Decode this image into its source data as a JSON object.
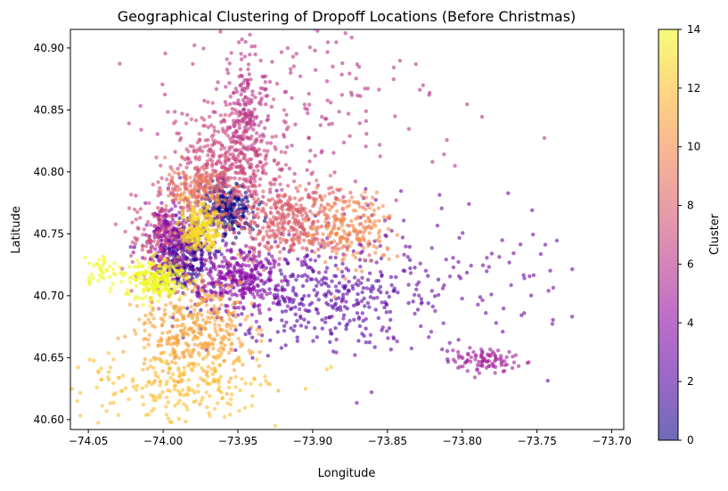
{
  "chart_data": {
    "type": "scatter",
    "title": "Geographical Clustering of Dropoff Locations (Before Christmas)",
    "xlabel": "Longitude",
    "ylabel": "Latitude",
    "xlim": [
      -74.062,
      -73.692
    ],
    "ylim": [
      40.592,
      40.915
    ],
    "xticks": [
      -74.05,
      -74.0,
      -73.95,
      -73.9,
      -73.85,
      -73.8,
      -73.75,
      -73.7
    ],
    "xtick_labels": [
      "−74.05",
      "−74.00",
      "−73.95",
      "−73.90",
      "−73.85",
      "−73.80",
      "−73.75",
      "−73.70"
    ],
    "yticks": [
      40.6,
      40.65,
      40.7,
      40.75,
      40.8,
      40.85,
      40.9
    ],
    "ytick_labels": [
      "40.60",
      "40.65",
      "40.70",
      "40.75",
      "40.80",
      "40.85",
      "40.90"
    ],
    "grid": false,
    "colormap": "plasma",
    "point_alpha": 0.6,
    "colorbar": {
      "label": "Cluster",
      "range": [
        0,
        14
      ],
      "ticks": [
        0,
        2,
        4,
        6,
        8,
        10,
        12,
        14
      ],
      "tick_labels": [
        "0",
        "2",
        "4",
        "6",
        "8",
        "10",
        "12",
        "14"
      ]
    },
    "clusters": [
      {
        "id": 0,
        "center": [
          -73.957,
          40.77
        ],
        "spread": [
          0.009,
          0.011
        ],
        "approx_points": 260
      },
      {
        "id": 1,
        "center": [
          -73.988,
          40.73
        ],
        "spread": [
          0.009,
          0.013
        ],
        "approx_points": 260
      },
      {
        "id": 2,
        "center": [
          -73.9,
          40.7
        ],
        "spread": [
          0.035,
          0.022
        ],
        "approx_points": 320
      },
      {
        "id": 3,
        "center": [
          -73.835,
          40.715
        ],
        "spread": [
          0.055,
          0.035
        ],
        "approx_points": 180
      },
      {
        "id": 4,
        "center": [
          -73.95,
          40.714
        ],
        "spread": [
          0.016,
          0.012
        ],
        "approx_points": 320
      },
      {
        "id": 4,
        "center": [
          -73.995,
          40.75
        ],
        "spread": [
          0.009,
          0.011
        ],
        "approx_points": 200
      },
      {
        "id": 5,
        "center": [
          -73.785,
          40.648
        ],
        "spread": [
          0.012,
          0.005
        ],
        "approx_points": 90
      },
      {
        "id": 6,
        "center": [
          -73.915,
          40.848
        ],
        "spread": [
          0.048,
          0.035
        ],
        "approx_points": 220
      },
      {
        "id": 6,
        "center": [
          -73.945,
          40.842
        ],
        "spread": [
          0.007,
          0.024
        ],
        "approx_points": 180
      },
      {
        "id": 7,
        "center": [
          -73.957,
          40.805
        ],
        "spread": [
          0.019,
          0.022
        ],
        "approx_points": 380
      },
      {
        "id": 7,
        "center": [
          -74.0,
          40.745
        ],
        "spread": [
          0.013,
          0.02
        ],
        "approx_points": 160
      },
      {
        "id": 8,
        "center": [
          -73.915,
          40.76
        ],
        "spread": [
          0.02,
          0.014
        ],
        "approx_points": 360
      },
      {
        "id": 9,
        "center": [
          -73.978,
          40.785
        ],
        "spread": [
          0.01,
          0.01
        ],
        "approx_points": 160
      },
      {
        "id": 10,
        "center": [
          -73.875,
          40.755
        ],
        "spread": [
          0.014,
          0.015
        ],
        "approx_points": 200
      },
      {
        "id": 11,
        "center": [
          -73.98,
          40.672
        ],
        "spread": [
          0.019,
          0.02
        ],
        "approx_points": 380
      },
      {
        "id": 12,
        "center": [
          -73.99,
          40.628
        ],
        "spread": [
          0.032,
          0.015
        ],
        "approx_points": 220
      },
      {
        "id": 13,
        "center": [
          -73.975,
          40.752
        ],
        "spread": [
          0.007,
          0.01
        ],
        "approx_points": 220
      },
      {
        "id": 14,
        "center": [
          -74.005,
          40.712
        ],
        "spread": [
          0.01,
          0.009
        ],
        "approx_points": 220
      },
      {
        "id": 14,
        "center": [
          -74.04,
          40.718
        ],
        "spread": [
          0.007,
          0.008
        ],
        "approx_points": 40
      }
    ]
  }
}
